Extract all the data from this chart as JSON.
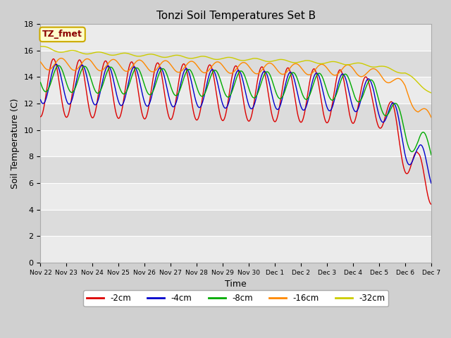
{
  "title": "Tonzi Soil Temperatures Set B",
  "xlabel": "Time",
  "ylabel": "Soil Temperature (C)",
  "ylim": [
    0,
    18
  ],
  "yticks": [
    0,
    2,
    4,
    6,
    8,
    10,
    12,
    14,
    16,
    18
  ],
  "annotation_text": "TZ_fmet",
  "annotation_color": "#8B0000",
  "annotation_bg": "#FFFFCC",
  "annotation_edge": "#CCAA00",
  "fig_bg": "#D0D0D0",
  "plot_bg_light": "#EBEBEB",
  "plot_bg_dark": "#DCDCDC",
  "grid_color": "#FFFFFF",
  "series": [
    {
      "label": "-2cm",
      "color": "#DD0000"
    },
    {
      "label": "-4cm",
      "color": "#0000CC"
    },
    {
      "label": "-8cm",
      "color": "#00AA00"
    },
    {
      "label": "-16cm",
      "color": "#FF8800"
    },
    {
      "label": "-32cm",
      "color": "#CCCC00"
    }
  ],
  "duration_days": 15,
  "num_points": 1500,
  "day_labels": [
    "Nov 22",
    "Nov 23",
    "Nov 24",
    "Nov 25",
    "Nov 26",
    "Nov 27",
    "Nov 28",
    "Nov 29",
    "Nov 30",
    "Dec 1",
    "Dec 2",
    "Dec 3",
    "Dec 4",
    "Dec 5",
    "Dec 6",
    "Dec 7"
  ]
}
